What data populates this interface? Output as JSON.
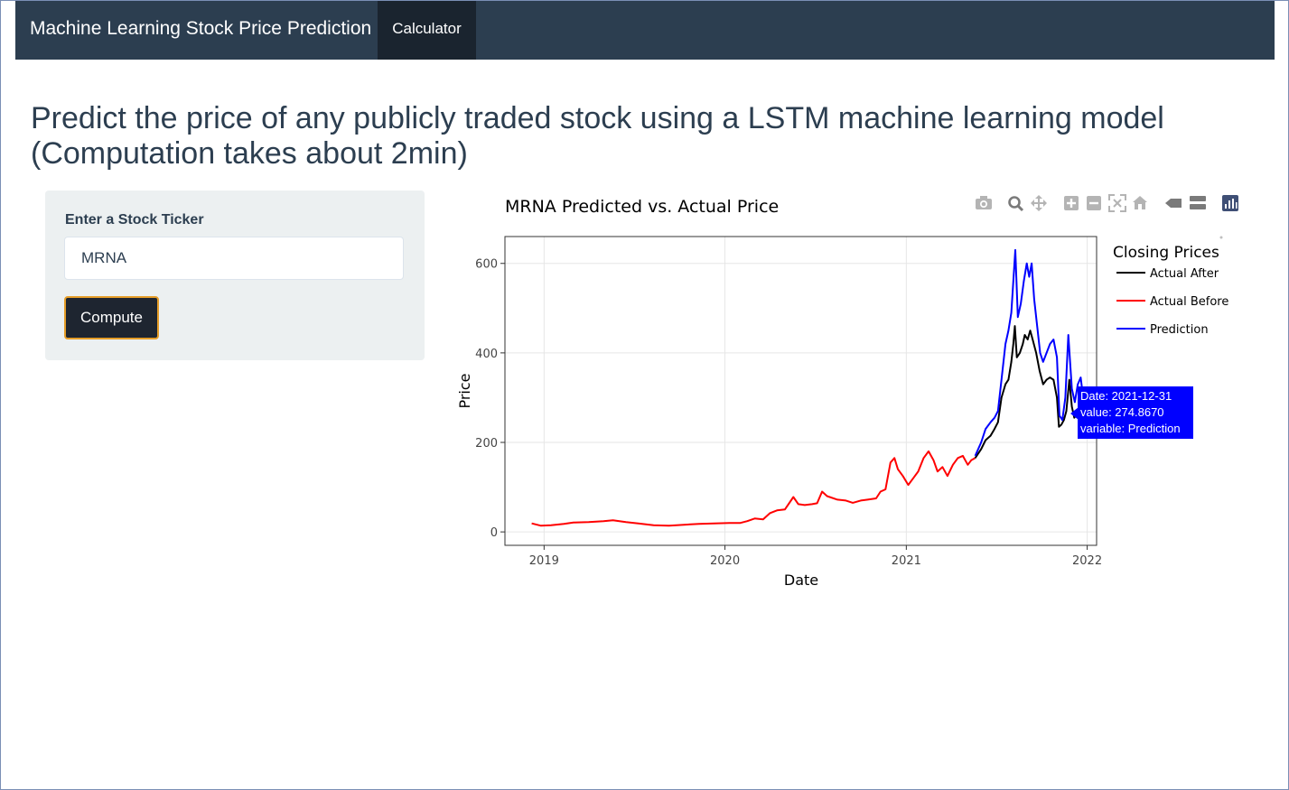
{
  "navbar": {
    "brand": "Machine Learning Stock Price Prediction",
    "tab_calculator": "Calculator"
  },
  "heading": "Predict the price of any publicly traded stock using a LSTM machine learning model (Computation takes about 2min)",
  "form": {
    "ticker_label": "Enter a Stock Ticker",
    "ticker_value": "MRNA",
    "compute_label": "Compute"
  },
  "toolbar": {
    "icons": [
      "camera-icon",
      "zoom-icon",
      "pan-icon",
      "zoom-in-icon",
      "zoom-out-icon",
      "autoscale-icon",
      "reset-axes-icon",
      "hover-closest-icon",
      "hover-compare-icon",
      "plotly-logo-icon"
    ]
  },
  "colors": {
    "navbar": "#2c3e50",
    "actual_after": "#000000",
    "actual_before": "#ff0000",
    "prediction": "#0000ff",
    "accent": "#e59d28"
  },
  "chart_data": {
    "type": "line",
    "title": "MRNA Predicted vs. Actual Price",
    "xlabel": "Date",
    "ylabel": "Price",
    "xlim": [
      "2018-10-14",
      "2022-01-20"
    ],
    "ylim": [
      -30,
      660
    ],
    "x_ticks": [
      "2019",
      "2020",
      "2021",
      "2022"
    ],
    "y_ticks": [
      "0",
      "200",
      "400",
      "600"
    ],
    "y_tick_values": [
      0,
      200,
      400,
      600
    ],
    "grid": true,
    "legend_title": "Closing Prices",
    "legend_position": "right",
    "series": [
      {
        "name": "Actual Before",
        "color": "#ff0000",
        "points": [
          [
            "2018-12-07",
            19
          ],
          [
            "2018-12-25",
            14
          ],
          [
            "2019-01-15",
            15
          ],
          [
            "2019-02-10",
            18
          ],
          [
            "2019-03-01",
            21
          ],
          [
            "2019-04-01",
            22
          ],
          [
            "2019-05-01",
            24
          ],
          [
            "2019-05-20",
            26
          ],
          [
            "2019-06-15",
            22
          ],
          [
            "2019-07-10",
            19
          ],
          [
            "2019-08-10",
            15
          ],
          [
            "2019-09-10",
            14
          ],
          [
            "2019-10-10",
            16
          ],
          [
            "2019-11-10",
            18
          ],
          [
            "2019-12-10",
            19
          ],
          [
            "2020-01-10",
            20
          ],
          [
            "2020-02-01",
            20
          ],
          [
            "2020-02-15",
            24
          ],
          [
            "2020-03-01",
            30
          ],
          [
            "2020-03-18",
            28
          ],
          [
            "2020-04-01",
            42
          ],
          [
            "2020-04-15",
            48
          ],
          [
            "2020-05-01",
            50
          ],
          [
            "2020-05-18",
            78
          ],
          [
            "2020-05-28",
            62
          ],
          [
            "2020-06-10",
            60
          ],
          [
            "2020-06-25",
            62
          ],
          [
            "2020-07-05",
            64
          ],
          [
            "2020-07-15",
            90
          ],
          [
            "2020-07-25",
            80
          ],
          [
            "2020-08-15",
            72
          ],
          [
            "2020-09-01",
            70
          ],
          [
            "2020-09-15",
            65
          ],
          [
            "2020-10-01",
            70
          ],
          [
            "2020-10-15",
            72
          ],
          [
            "2020-11-01",
            75
          ],
          [
            "2020-11-10",
            90
          ],
          [
            "2020-11-20",
            95
          ],
          [
            "2020-11-30",
            155
          ],
          [
            "2020-12-08",
            165
          ],
          [
            "2020-12-15",
            140
          ],
          [
            "2020-12-25",
            125
          ],
          [
            "2021-01-05",
            105
          ],
          [
            "2021-01-15",
            120
          ],
          [
            "2021-01-25",
            135
          ],
          [
            "2021-02-05",
            165
          ],
          [
            "2021-02-15",
            180
          ],
          [
            "2021-02-25",
            160
          ],
          [
            "2021-03-05",
            135
          ],
          [
            "2021-03-15",
            145
          ],
          [
            "2021-03-25",
            125
          ],
          [
            "2021-04-05",
            150
          ],
          [
            "2021-04-15",
            165
          ],
          [
            "2021-04-25",
            170
          ],
          [
            "2021-05-05",
            150
          ],
          [
            "2021-05-12",
            160
          ],
          [
            "2021-05-20",
            165
          ]
        ]
      },
      {
        "name": "Actual After",
        "color": "#000000",
        "points": [
          [
            "2021-05-20",
            165
          ],
          [
            "2021-06-01",
            185
          ],
          [
            "2021-06-10",
            205
          ],
          [
            "2021-06-20",
            215
          ],
          [
            "2021-06-28",
            230
          ],
          [
            "2021-07-05",
            245
          ],
          [
            "2021-07-12",
            300
          ],
          [
            "2021-07-20",
            330
          ],
          [
            "2021-07-26",
            340
          ],
          [
            "2021-08-01",
            380
          ],
          [
            "2021-08-05",
            420
          ],
          [
            "2021-08-08",
            460
          ],
          [
            "2021-08-12",
            390
          ],
          [
            "2021-08-18",
            400
          ],
          [
            "2021-08-24",
            420
          ],
          [
            "2021-08-28",
            440
          ],
          [
            "2021-09-03",
            430
          ],
          [
            "2021-09-08",
            450
          ],
          [
            "2021-09-13",
            430
          ],
          [
            "2021-09-20",
            400
          ],
          [
            "2021-09-27",
            360
          ],
          [
            "2021-10-04",
            330
          ],
          [
            "2021-10-11",
            340
          ],
          [
            "2021-10-18",
            345
          ],
          [
            "2021-10-25",
            340
          ],
          [
            "2021-11-01",
            300
          ],
          [
            "2021-11-05",
            235
          ],
          [
            "2021-11-10",
            240
          ],
          [
            "2021-11-15",
            250
          ],
          [
            "2021-11-20",
            270
          ],
          [
            "2021-11-26",
            340
          ],
          [
            "2021-12-01",
            280
          ],
          [
            "2021-12-06",
            255
          ],
          [
            "2021-12-12",
            265
          ],
          [
            "2021-12-18",
            280
          ],
          [
            "2021-12-24",
            255
          ],
          [
            "2021-12-31",
            255
          ]
        ]
      },
      {
        "name": "Prediction",
        "color": "#0000ff",
        "points": [
          [
            "2021-05-20",
            170
          ],
          [
            "2021-06-01",
            200
          ],
          [
            "2021-06-10",
            230
          ],
          [
            "2021-06-20",
            245
          ],
          [
            "2021-06-28",
            255
          ],
          [
            "2021-07-05",
            270
          ],
          [
            "2021-07-12",
            340
          ],
          [
            "2021-07-20",
            420
          ],
          [
            "2021-07-26",
            450
          ],
          [
            "2021-08-01",
            490
          ],
          [
            "2021-08-05",
            560
          ],
          [
            "2021-08-09",
            630
          ],
          [
            "2021-08-14",
            480
          ],
          [
            "2021-08-20",
            510
          ],
          [
            "2021-08-26",
            560
          ],
          [
            "2021-09-01",
            600
          ],
          [
            "2021-09-06",
            570
          ],
          [
            "2021-09-11",
            600
          ],
          [
            "2021-09-16",
            520
          ],
          [
            "2021-09-22",
            460
          ],
          [
            "2021-09-28",
            400
          ],
          [
            "2021-10-04",
            380
          ],
          [
            "2021-10-11",
            400
          ],
          [
            "2021-10-18",
            420
          ],
          [
            "2021-10-25",
            430
          ],
          [
            "2021-11-01",
            390
          ],
          [
            "2021-11-06",
            260
          ],
          [
            "2021-11-12",
            250
          ],
          [
            "2021-11-18",
            300
          ],
          [
            "2021-11-24",
            440
          ],
          [
            "2021-12-01",
            320
          ],
          [
            "2021-12-07",
            290
          ],
          [
            "2021-12-13",
            330
          ],
          [
            "2021-12-19",
            345
          ],
          [
            "2021-12-25",
            290
          ],
          [
            "2021-12-31",
            275
          ]
        ]
      }
    ],
    "tooltip": {
      "date_line": "Date: 2021-12-31",
      "value_line": "value: 274.8670",
      "variable_line": "variable: Prediction"
    }
  }
}
